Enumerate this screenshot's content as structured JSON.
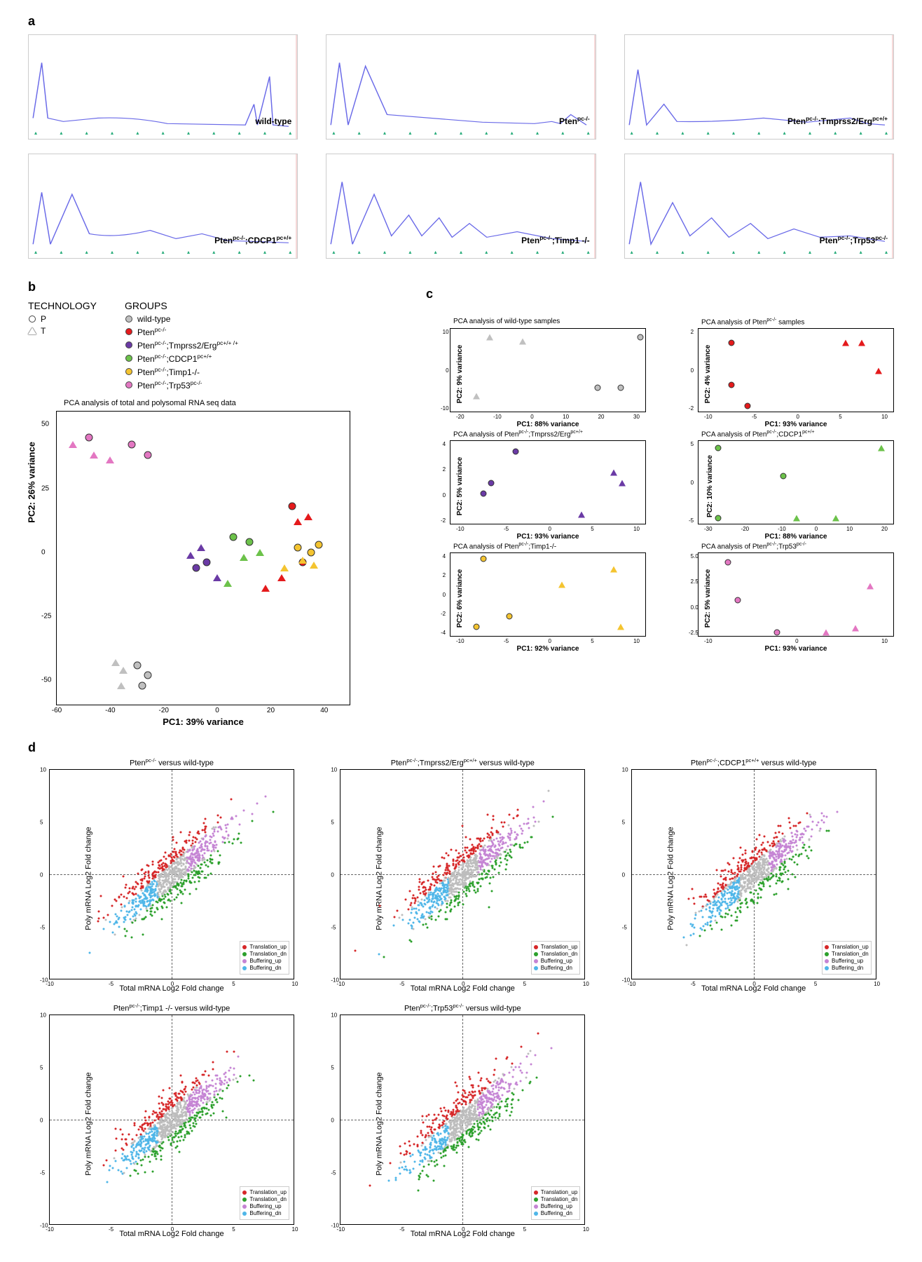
{
  "panels": {
    "a": "a",
    "b": "b",
    "c": "c",
    "d": "d"
  },
  "colors": {
    "wild_type": "#c0c0c0",
    "pten": "#e41a1c",
    "tmprss2": "#6a3aa5",
    "cdcp1": "#6cc24a",
    "timp1": "#f4c430",
    "trp53": "#e377c2",
    "profile_line": "#6a6ae8",
    "translation_up": "#d62728",
    "translation_dn": "#2ca02c",
    "buffering_up": "#c584d4",
    "buffering_dn": "#4fb6e8",
    "grey_dot": "#bdbdbd"
  },
  "profiles": {
    "labels": [
      "wild-type",
      "Pten^{pc-/-}",
      "Pten^{pc-/-};Tmprss2/Erg^{pc+/+}",
      "Pten^{pc-/-};CDCP1^{pc+/+}",
      "Pten^{pc-/-};Timp1 -/-",
      "Pten^{pc-/-};Trp53^{pc-/-}"
    ],
    "n_ticks": 11,
    "paths": [
      "M5,120 L15,40 L22,120 L40,125 L80,120 Q120,118 160,128 L250,130 L260,100 L264,130 L278,60 L282,130 L300,132",
      "M5,130 L15,40 L25,130 L45,45 L70,115 Q120,120 180,126 L240,128 L260,125 L270,128 L282,115 L300,130",
      "M5,130 L15,50 L25,130 L45,100 L60,125 Q110,126 160,120 L210,126 L260,120 L280,128 L300,130",
      "M5,130 L15,55 L25,130 L50,58 L70,115 Q100,122 140,110 L170,122 L200,115 L230,125 L260,126 L300,128",
      "M5,130 L18,40 L30,130 L55,58 L75,118 L95,88 L110,118 L130,92 L145,120 L165,100 L185,120 L220,112 L260,122 L300,126",
      "M5,130 L18,40 L30,130 L55,70 L75,118 L100,92 L120,120 L145,100 L165,122 L195,108 L225,120 L260,118 L300,126"
    ]
  },
  "legend": {
    "technology_title": "TECHNOLOGY",
    "groups_title": "GROUPS",
    "tech": [
      {
        "label": "P",
        "shape": "circle"
      },
      {
        "label": "T",
        "shape": "triangle"
      }
    ],
    "groups": [
      {
        "label": "wild-type",
        "color": "#c0c0c0"
      },
      {
        "label": "Pten^{pc-/-}",
        "color": "#e41a1c"
      },
      {
        "label": "Pten^{pc-/-};Tmprss2/Erg^{pc+/+ /+}",
        "color": "#6a3aa5"
      },
      {
        "label": "Pten^{pc-/-};CDCP1^{pc+/+}",
        "color": "#6cc24a"
      },
      {
        "label": "Pten^{pc-/-};Timp1-/-",
        "color": "#f4c430"
      },
      {
        "label": "Pten^{pc-/-};Trp53^{pc-/-}",
        "color": "#e377c2"
      }
    ]
  },
  "pca_main": {
    "title": "PCA analysis of total and polysomal RNA seq data",
    "xlabel": "PC1: 39% variance",
    "ylabel": "PC2: 26% variance",
    "xlim": [
      -60,
      50
    ],
    "ylim": [
      -60,
      55
    ],
    "xticks": [
      -60,
      -40,
      -20,
      0,
      20,
      40
    ],
    "yticks": [
      -50,
      -25,
      0,
      25,
      50
    ],
    "points": [
      {
        "x": -48,
        "y": 45,
        "shape": "c",
        "color": "#e377c2"
      },
      {
        "x": -54,
        "y": 42,
        "shape": "t",
        "color": "#e377c2"
      },
      {
        "x": -46,
        "y": 38,
        "shape": "t",
        "color": "#e377c2"
      },
      {
        "x": -40,
        "y": 36,
        "shape": "t",
        "color": "#e377c2"
      },
      {
        "x": -32,
        "y": 42,
        "shape": "c",
        "color": "#e377c2"
      },
      {
        "x": -26,
        "y": 38,
        "shape": "c",
        "color": "#e377c2"
      },
      {
        "x": 28,
        "y": 18,
        "shape": "c",
        "color": "#e41a1c"
      },
      {
        "x": 30,
        "y": 12,
        "shape": "t",
        "color": "#e41a1c"
      },
      {
        "x": 34,
        "y": 14,
        "shape": "t",
        "color": "#e41a1c"
      },
      {
        "x": 32,
        "y": -4,
        "shape": "c",
        "color": "#e41a1c"
      },
      {
        "x": 24,
        "y": -10,
        "shape": "t",
        "color": "#e41a1c"
      },
      {
        "x": 18,
        "y": -14,
        "shape": "t",
        "color": "#e41a1c"
      },
      {
        "x": -6,
        "y": 2,
        "shape": "t",
        "color": "#6a3aa5"
      },
      {
        "x": -10,
        "y": -1,
        "shape": "t",
        "color": "#6a3aa5"
      },
      {
        "x": -4,
        "y": -4,
        "shape": "c",
        "color": "#6a3aa5"
      },
      {
        "x": -8,
        "y": -6,
        "shape": "c",
        "color": "#6a3aa5"
      },
      {
        "x": 0,
        "y": -10,
        "shape": "t",
        "color": "#6a3aa5"
      },
      {
        "x": 6,
        "y": 6,
        "shape": "c",
        "color": "#6cc24a"
      },
      {
        "x": 12,
        "y": 4,
        "shape": "c",
        "color": "#6cc24a"
      },
      {
        "x": 10,
        "y": -2,
        "shape": "t",
        "color": "#6cc24a"
      },
      {
        "x": 16,
        "y": 0,
        "shape": "t",
        "color": "#6cc24a"
      },
      {
        "x": 4,
        "y": -12,
        "shape": "t",
        "color": "#6cc24a"
      },
      {
        "x": 30,
        "y": 2,
        "shape": "c",
        "color": "#f4c430"
      },
      {
        "x": 35,
        "y": 0,
        "shape": "c",
        "color": "#f4c430"
      },
      {
        "x": 38,
        "y": 3,
        "shape": "c",
        "color": "#f4c430"
      },
      {
        "x": 32,
        "y": -3,
        "shape": "t",
        "color": "#f4c430"
      },
      {
        "x": 36,
        "y": -5,
        "shape": "t",
        "color": "#f4c430"
      },
      {
        "x": 25,
        "y": -6,
        "shape": "t",
        "color": "#f4c430"
      },
      {
        "x": -38,
        "y": -43,
        "shape": "t",
        "color": "#c0c0c0"
      },
      {
        "x": -35,
        "y": -46,
        "shape": "t",
        "color": "#c0c0c0"
      },
      {
        "x": -30,
        "y": -44,
        "shape": "c",
        "color": "#c0c0c0"
      },
      {
        "x": -26,
        "y": -48,
        "shape": "c",
        "color": "#c0c0c0"
      },
      {
        "x": -28,
        "y": -52,
        "shape": "c",
        "color": "#c0c0c0"
      },
      {
        "x": -36,
        "y": -52,
        "shape": "t",
        "color": "#c0c0c0"
      }
    ]
  },
  "pca_small": [
    {
      "title": "PCA analysis of wild-type samples",
      "xlabel": "PC1: 88% variance",
      "ylabel": "PC2: 9% variance",
      "color": "#c0c0c0",
      "xlim": [
        -30,
        30
      ],
      "ylim": [
        -10,
        10
      ],
      "xticks": [
        "-20",
        "-10",
        "0",
        "10",
        "20",
        "30"
      ],
      "yticks": [
        "10",
        "0",
        "-10"
      ],
      "points": [
        {
          "x": -22,
          "y": -6,
          "s": "t"
        },
        {
          "x": -18,
          "y": 8,
          "s": "t"
        },
        {
          "x": -8,
          "y": 7,
          "s": "t"
        },
        {
          "x": 15,
          "y": -4,
          "s": "c"
        },
        {
          "x": 22,
          "y": -4,
          "s": "c"
        },
        {
          "x": 28,
          "y": 8,
          "s": "c"
        }
      ]
    },
    {
      "title": "PCA analysis of Pten^{pc-/-} samples",
      "xlabel": "PC1: 93% variance",
      "ylabel": "PC2: 4% variance",
      "color": "#e41a1c",
      "xlim": [
        -12,
        12
      ],
      "ylim": [
        -3,
        3
      ],
      "xticks": [
        "-10",
        "-5",
        "0",
        "5",
        "10"
      ],
      "yticks": [
        "2",
        "0",
        "-2"
      ],
      "points": [
        {
          "x": -8,
          "y": 2,
          "s": "c"
        },
        {
          "x": -8,
          "y": -1,
          "s": "c"
        },
        {
          "x": -6,
          "y": -2.5,
          "s": "c"
        },
        {
          "x": 6,
          "y": 2,
          "s": "t"
        },
        {
          "x": 8,
          "y": 2,
          "s": "t"
        },
        {
          "x": 10,
          "y": 0,
          "s": "t"
        }
      ]
    },
    {
      "title": "PCA analysis of Pten^{pc-/-};Tmprss2/Erg^{pc+/+}",
      "xlabel": "PC1: 93% variance",
      "ylabel": "PC2: 5% variance",
      "color": "#6a3aa5",
      "xlim": [
        -12,
        12
      ],
      "ylim": [
        -4,
        4
      ],
      "xticks": [
        "-10",
        "-5",
        "0",
        "5",
        "10"
      ],
      "yticks": [
        "4",
        "2",
        "0",
        "-2"
      ],
      "points": [
        {
          "x": -8,
          "y": -1,
          "s": "c"
        },
        {
          "x": -7,
          "y": 0,
          "s": "c"
        },
        {
          "x": -4,
          "y": 3,
          "s": "c"
        },
        {
          "x": 4,
          "y": -3,
          "s": "t"
        },
        {
          "x": 8,
          "y": 1,
          "s": "t"
        },
        {
          "x": 9,
          "y": 0,
          "s": "t"
        }
      ]
    },
    {
      "title": "PCA analysis of Pten^{pc-/-};CDCP1^{pc+/+}",
      "xlabel": "PC1: 88% variance",
      "ylabel": "PC2: 10% variance",
      "color": "#6cc24a",
      "xlim": [
        -30,
        30
      ],
      "ylim": [
        -6,
        6
      ],
      "xticks": [
        "-30",
        "-20",
        "-10",
        "0",
        "10",
        "20"
      ],
      "yticks": [
        "5",
        "0",
        "-5"
      ],
      "points": [
        {
          "x": -24,
          "y": 5,
          "s": "c"
        },
        {
          "x": -24,
          "y": -5,
          "s": "c"
        },
        {
          "x": -4,
          "y": 1,
          "s": "c"
        },
        {
          "x": 0,
          "y": -5,
          "s": "t"
        },
        {
          "x": 12,
          "y": -5,
          "s": "t"
        },
        {
          "x": 26,
          "y": 5,
          "s": "t"
        }
      ]
    },
    {
      "title": "PCA analysis of Pten^{pc-/-};Timp1-/-",
      "xlabel": "PC1: 92% variance",
      "ylabel": "PC2: 6% variance",
      "color": "#f4c430",
      "xlim": [
        -15,
        15
      ],
      "ylim": [
        -4,
        4
      ],
      "xticks": [
        "-10",
        "-5",
        "0",
        "5",
        "10"
      ],
      "yticks": [
        "4",
        "2",
        "0",
        "-2",
        "-4"
      ],
      "points": [
        {
          "x": -10,
          "y": 3.5,
          "s": "c"
        },
        {
          "x": -6,
          "y": -2,
          "s": "c"
        },
        {
          "x": -11,
          "y": -3,
          "s": "c"
        },
        {
          "x": 2,
          "y": 1,
          "s": "t"
        },
        {
          "x": 10,
          "y": 2.5,
          "s": "t"
        },
        {
          "x": 11,
          "y": -3,
          "s": "t"
        }
      ]
    },
    {
      "title": "PCA analysis of Pten^{pc-/-};Trp53^{pc-/-}",
      "xlabel": "PC1: 93% variance",
      "ylabel": "PC2: 5% variance",
      "color": "#e377c2",
      "xlim": [
        -20,
        20
      ],
      "ylim": [
        -3,
        6
      ],
      "xticks": [
        "-10",
        "0",
        "10"
      ],
      "yticks": [
        "5.0",
        "2.5",
        "0.0",
        "-2.5"
      ],
      "points": [
        {
          "x": -14,
          "y": 5,
          "s": "c"
        },
        {
          "x": -12,
          "y": 1,
          "s": "c"
        },
        {
          "x": -4,
          "y": -2.5,
          "s": "c"
        },
        {
          "x": 6,
          "y": -2.5,
          "s": "t"
        },
        {
          "x": 15,
          "y": 2.5,
          "s": "t"
        },
        {
          "x": 12,
          "y": -2,
          "s": "t"
        }
      ]
    }
  ],
  "scatter_d": {
    "xlabel": "Total mRNA Log2 Fold change",
    "ylabel": "Poly mRNA Log2 Fold change",
    "legend": [
      {
        "label": "Translation_up",
        "color": "#d62728"
      },
      {
        "label": "Translation_dn",
        "color": "#2ca02c"
      },
      {
        "label": "Buffering_up",
        "color": "#c584d4"
      },
      {
        "label": "Buffering_dn",
        "color": "#4fb6e8"
      }
    ],
    "charts": [
      {
        "title": "Pten^{pc-/-} versus wild-type"
      },
      {
        "title": "Pten^{pc-/-};Tmprss2/Erg^{pc+/+} versus wild-type"
      },
      {
        "title": "Pten^{pc-/-};CDCP1^{pc+/+} versus wild-type"
      },
      {
        "title": "Pten^{pc-/-};Timp1 -/- versus wild-type"
      },
      {
        "title": "Pten^{pc-/-};Trp53^{pc-/-} versus wild-type"
      }
    ],
    "n_points": 900,
    "lim": 10
  }
}
